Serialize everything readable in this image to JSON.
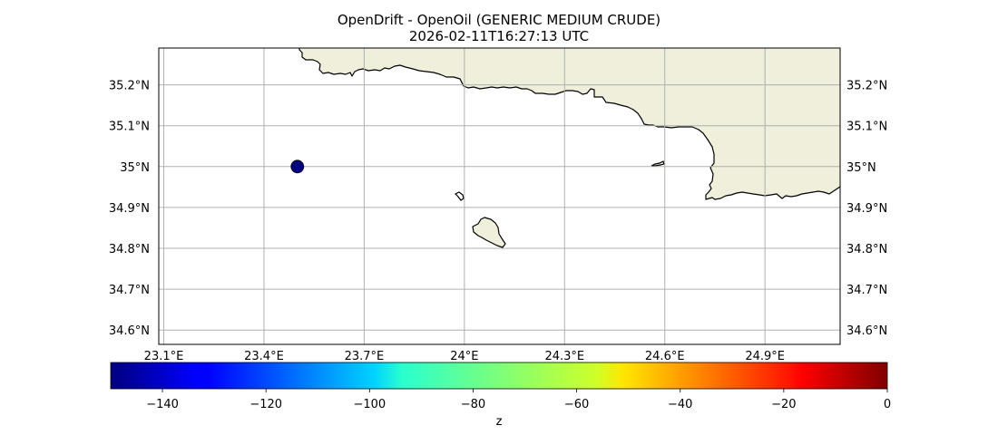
{
  "title": {
    "line1": "OpenDrift - OpenOil (GENERIC MEDIUM CRUDE)",
    "line2": "2026-02-11T16:27:13 UTC"
  },
  "map": {
    "lon_range": [
      23.085,
      25.125
    ],
    "lat_range": [
      34.565,
      35.29
    ],
    "gridlines": true,
    "xticks": [
      {
        "value": 23.1,
        "label": "23.1°E"
      },
      {
        "value": 23.4,
        "label": "23.4°E"
      },
      {
        "value": 23.7,
        "label": "23.7°E"
      },
      {
        "value": 24.0,
        "label": "24°E"
      },
      {
        "value": 24.3,
        "label": "24.3°E"
      },
      {
        "value": 24.6,
        "label": "24.6°E"
      },
      {
        "value": 24.9,
        "label": "24.9°E"
      }
    ],
    "yticks": [
      {
        "value": 35.2,
        "label": "35.2°N"
      },
      {
        "value": 35.1,
        "label": "35.1°N"
      },
      {
        "value": 35.0,
        "label": "35°N"
      },
      {
        "value": 34.9,
        "label": "34.9°N"
      },
      {
        "value": 34.8,
        "label": "34.8°N"
      },
      {
        "value": 34.7,
        "label": "34.7°N"
      },
      {
        "value": 34.6,
        "label": "34.6°N"
      }
    ],
    "land_color": "#efefdb",
    "coast_color": "#000000",
    "grid_color": "#b0b0b0"
  },
  "particles": [
    {
      "lon": 23.5,
      "lat": 35.0,
      "z": -150
    }
  ],
  "colorbar": {
    "colormap": "jet",
    "range": [
      -150,
      0
    ],
    "ticks": [
      {
        "value": -140,
        "label": "−140"
      },
      {
        "value": -120,
        "label": "−120"
      },
      {
        "value": -100,
        "label": "−100"
      },
      {
        "value": -80,
        "label": "−80"
      },
      {
        "value": -60,
        "label": "−60"
      },
      {
        "value": -40,
        "label": "−40"
      },
      {
        "value": -20,
        "label": "−20"
      },
      {
        "value": 0,
        "label": "0"
      }
    ],
    "label": "z"
  }
}
